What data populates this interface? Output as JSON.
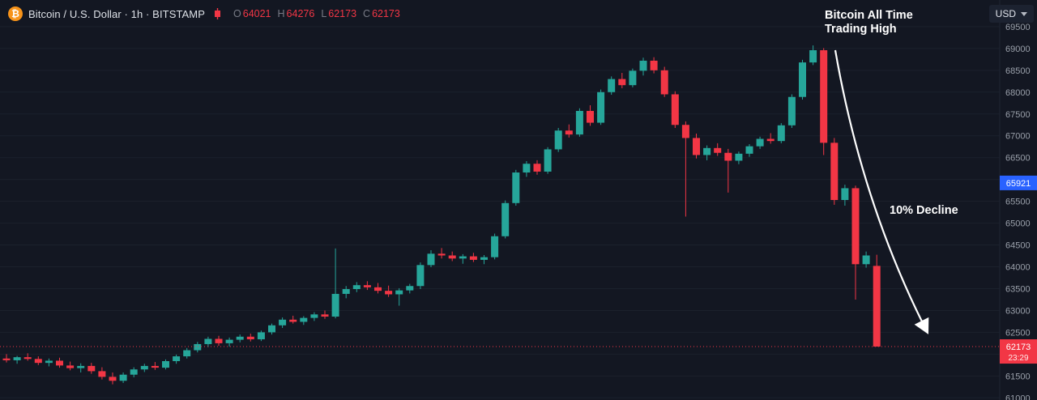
{
  "header": {
    "symbol_title": "Bitcoin / U.S. Dollar · 1h · BITSTAMP",
    "ohlc": {
      "o_label": "O",
      "o": "64021",
      "h_label": "H",
      "h": "64276",
      "l_label": "L",
      "l": "62173",
      "c_label": "C",
      "c": "62173"
    },
    "currency": "USD",
    "logo_glyph": "₿"
  },
  "annotations": {
    "ath_line1": "Bitcoin All Time",
    "ath_line2": "Trading High",
    "decline": "10% Decline"
  },
  "price_axis": {
    "labels": [
      69500,
      69000,
      68500,
      68000,
      67500,
      67000,
      66500,
      66000,
      65500,
      65000,
      64500,
      64000,
      63500,
      63000,
      62500,
      62000,
      61500,
      61000
    ],
    "alert_badge": {
      "price": "65921",
      "color": "#2962ff"
    },
    "last_badge": {
      "price": "62173",
      "countdown": "23:29",
      "color": "#f23645"
    }
  },
  "colors": {
    "bg": "#131722",
    "grid": "#1b212c",
    "axis_text": "#9aa0aa",
    "axis_border": "#1f2433",
    "up": "#26a69a",
    "down": "#f23645",
    "arrow": "#ffffff"
  },
  "chart_data": {
    "type": "candlestick",
    "title": "Bitcoin / U.S. Dollar · 1h · BITSTAMP",
    "ylim": [
      60950,
      70110
    ],
    "grid": true,
    "last_close": 62173,
    "x_start": 8,
    "spacing": 13.1,
    "body_width": 9,
    "candles": [
      [
        61900,
        62000,
        61810,
        61860
      ],
      [
        61860,
        61960,
        61780,
        61930
      ],
      [
        61930,
        62020,
        61850,
        61890
      ],
      [
        61890,
        61950,
        61750,
        61800
      ],
      [
        61800,
        61900,
        61720,
        61850
      ],
      [
        61850,
        61920,
        61690,
        61740
      ],
      [
        61740,
        61830,
        61630,
        61680
      ],
      [
        61680,
        61790,
        61580,
        61730
      ],
      [
        61730,
        61800,
        61550,
        61610
      ],
      [
        61610,
        61700,
        61420,
        61480
      ],
      [
        61480,
        61580,
        61310,
        61390
      ],
      [
        61390,
        61580,
        61340,
        61530
      ],
      [
        61530,
        61700,
        61470,
        61650
      ],
      [
        61650,
        61780,
        61590,
        61730
      ],
      [
        61730,
        61820,
        61640,
        61690
      ],
      [
        61690,
        61880,
        61650,
        61840
      ],
      [
        61840,
        61990,
        61780,
        61950
      ],
      [
        61950,
        62140,
        61900,
        62090
      ],
      [
        62090,
        62280,
        62040,
        62230
      ],
      [
        62230,
        62400,
        62160,
        62350
      ],
      [
        62350,
        62420,
        62190,
        62250
      ],
      [
        62250,
        62380,
        62170,
        62330
      ],
      [
        62330,
        62450,
        62270,
        62400
      ],
      [
        62400,
        62470,
        62290,
        62340
      ],
      [
        62340,
        62540,
        62300,
        62500
      ],
      [
        62500,
        62700,
        62450,
        62660
      ],
      [
        62660,
        62840,
        62600,
        62790
      ],
      [
        62790,
        62880,
        62700,
        62740
      ],
      [
        62740,
        62870,
        62670,
        62830
      ],
      [
        62830,
        62960,
        62760,
        62910
      ],
      [
        62910,
        63000,
        62810,
        62860
      ],
      [
        62860,
        64420,
        62820,
        63380
      ],
      [
        63380,
        63560,
        63280,
        63490
      ],
      [
        63490,
        63650,
        63420,
        63580
      ],
      [
        63580,
        63670,
        63470,
        63530
      ],
      [
        63530,
        63630,
        63390,
        63450
      ],
      [
        63450,
        63570,
        63310,
        63370
      ],
      [
        63370,
        63510,
        63110,
        63460
      ],
      [
        63460,
        63610,
        63390,
        63560
      ],
      [
        63560,
        64100,
        63490,
        64040
      ],
      [
        64040,
        64380,
        63990,
        64300
      ],
      [
        64300,
        64430,
        64190,
        64260
      ],
      [
        64260,
        64350,
        64130,
        64190
      ],
      [
        64190,
        64290,
        64070,
        64240
      ],
      [
        64240,
        64320,
        64110,
        64160
      ],
      [
        64160,
        64270,
        64060,
        64220
      ],
      [
        64220,
        64760,
        64170,
        64700
      ],
      [
        64700,
        65520,
        64650,
        65460
      ],
      [
        65460,
        66220,
        65400,
        66160
      ],
      [
        66160,
        66420,
        66060,
        66360
      ],
      [
        66360,
        66440,
        66110,
        66180
      ],
      [
        66180,
        66740,
        66130,
        66690
      ],
      [
        66690,
        67180,
        66630,
        67120
      ],
      [
        67120,
        67260,
        66960,
        67030
      ],
      [
        67030,
        67630,
        66980,
        67570
      ],
      [
        67570,
        67700,
        67230,
        67300
      ],
      [
        67300,
        68060,
        67250,
        68000
      ],
      [
        68000,
        68360,
        67940,
        68300
      ],
      [
        68300,
        68440,
        68090,
        68160
      ],
      [
        68160,
        68540,
        68110,
        68490
      ],
      [
        68490,
        68790,
        68380,
        68720
      ],
      [
        68720,
        68800,
        68430,
        68500
      ],
      [
        68500,
        68580,
        67890,
        67950
      ],
      [
        67950,
        68020,
        67180,
        67250
      ],
      [
        67250,
        67330,
        65150,
        66950
      ],
      [
        66950,
        67050,
        66480,
        66560
      ],
      [
        66560,
        66780,
        66440,
        66720
      ],
      [
        66720,
        66830,
        66540,
        66610
      ],
      [
        66610,
        66700,
        65700,
        66430
      ],
      [
        66430,
        66640,
        66350,
        66590
      ],
      [
        66590,
        66810,
        66520,
        66760
      ],
      [
        66760,
        66980,
        66700,
        66930
      ],
      [
        66930,
        67060,
        66820,
        66880
      ],
      [
        66880,
        67290,
        66830,
        67240
      ],
      [
        67240,
        67950,
        67180,
        67890
      ],
      [
        67890,
        68740,
        67830,
        68680
      ],
      [
        68680,
        69070,
        68620,
        68960
      ],
      [
        68960,
        69010,
        66560,
        66840
      ],
      [
        66840,
        66950,
        65420,
        65530
      ],
      [
        65530,
        65880,
        65400,
        65800
      ],
      [
        65800,
        65860,
        63250,
        64060
      ],
      [
        64060,
        64350,
        63980,
        64260
      ],
      [
        64021,
        64276,
        62173,
        62173
      ]
    ]
  }
}
